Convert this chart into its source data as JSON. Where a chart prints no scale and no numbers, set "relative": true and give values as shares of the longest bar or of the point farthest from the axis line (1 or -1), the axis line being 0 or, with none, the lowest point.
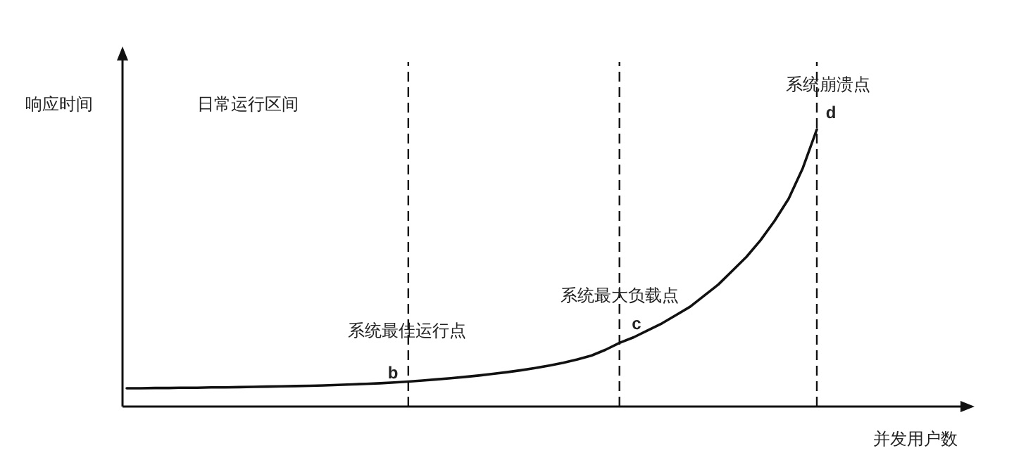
{
  "chart_data": {
    "type": "line",
    "relative": true,
    "xlabel": "并发用户数",
    "ylabel": "响应时间",
    "categories": [
      null,
      null,
      null,
      null,
      null,
      null,
      null,
      null,
      null,
      null,
      null,
      null,
      null,
      null,
      null,
      null,
      null,
      null,
      null,
      null,
      null,
      null,
      null,
      null,
      null,
      null,
      null,
      null,
      null,
      null,
      null,
      null,
      null,
      null,
      null,
      null,
      null,
      null,
      null,
      null,
      null,
      null,
      null,
      null,
      null,
      null,
      null,
      null,
      null,
      null
    ],
    "series": [
      {
        "color": "#111111",
        "values": [
          0.066,
          0.066,
          0.067,
          0.067,
          0.068,
          0.068,
          0.069,
          0.069,
          0.07,
          0.071,
          0.072,
          0.073,
          0.074,
          0.075,
          0.076,
          0.078,
          0.08,
          0.082,
          0.084,
          0.087,
          0.09,
          0.094,
          0.098,
          0.102,
          0.107,
          0.112,
          0.118,
          0.124,
          0.131,
          0.139,
          0.148,
          0.158,
          0.17,
          0.184,
          0.205,
          0.23,
          0.25,
          0.275,
          0.3,
          0.33,
          0.36,
          0.4,
          0.44,
          0.49,
          0.54,
          0.6,
          0.67,
          0.75,
          0.86,
          1.0
        ]
      }
    ],
    "annotations": [
      "日常运行区间",
      "系统最佳运行点",
      "b",
      "系统最大负载点",
      "c",
      "系统崩溃点",
      "d"
    ],
    "grid": "x",
    "marker": "none",
    "line_style": "solid"
  }
}
